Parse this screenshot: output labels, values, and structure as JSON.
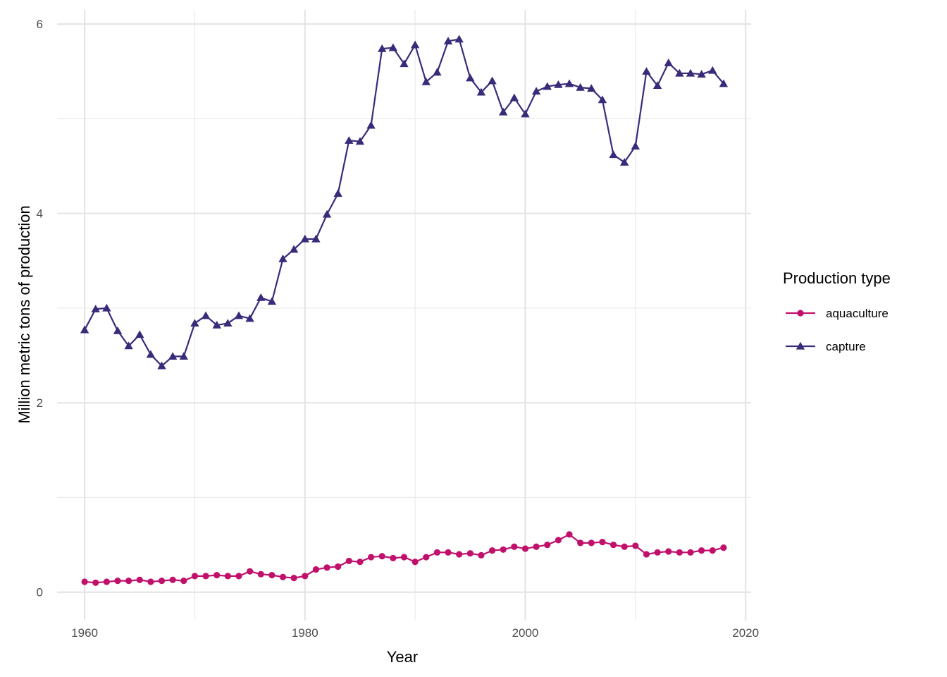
{
  "chart_data": {
    "type": "line",
    "xlabel": "Year",
    "ylabel": "Million metric tons of production",
    "xlim": [
      1957.5,
      2020.5
    ],
    "ylim": [
      -0.3,
      6.15
    ],
    "x_ticks": [
      1960,
      1980,
      2000,
      2020
    ],
    "y_ticks": [
      0,
      2,
      4,
      6
    ],
    "grid": true,
    "legend": {
      "title": "Production type",
      "position": "right"
    },
    "x": [
      1960,
      1961,
      1962,
      1963,
      1964,
      1965,
      1966,
      1967,
      1968,
      1969,
      1970,
      1971,
      1972,
      1973,
      1974,
      1975,
      1976,
      1977,
      1978,
      1979,
      1980,
      1981,
      1982,
      1983,
      1984,
      1985,
      1986,
      1987,
      1988,
      1989,
      1990,
      1991,
      1992,
      1993,
      1994,
      1995,
      1996,
      1997,
      1998,
      1999,
      2000,
      2001,
      2002,
      2003,
      2004,
      2005,
      2006,
      2007,
      2008,
      2009,
      2010,
      2011,
      2012,
      2013,
      2014,
      2015,
      2016,
      2017,
      2018
    ],
    "series": [
      {
        "name": "aquaculture",
        "color": "#c0106b",
        "marker": "circle",
        "values": [
          0.11,
          0.1,
          0.11,
          0.12,
          0.12,
          0.13,
          0.11,
          0.12,
          0.13,
          0.12,
          0.17,
          0.17,
          0.18,
          0.17,
          0.17,
          0.22,
          0.19,
          0.18,
          0.16,
          0.15,
          0.17,
          0.24,
          0.26,
          0.27,
          0.33,
          0.32,
          0.37,
          0.38,
          0.36,
          0.37,
          0.32,
          0.37,
          0.42,
          0.42,
          0.4,
          0.41,
          0.39,
          0.44,
          0.45,
          0.48,
          0.46,
          0.48,
          0.5,
          0.55,
          0.61,
          0.52,
          0.52,
          0.53,
          0.5,
          0.48,
          0.49,
          0.4,
          0.42,
          0.43,
          0.42,
          0.42,
          0.44,
          0.44,
          0.47
        ]
      },
      {
        "name": "capture",
        "color": "#3a2a7a",
        "marker": "triangle",
        "values": [
          2.77,
          2.99,
          3.0,
          2.76,
          2.6,
          2.72,
          2.51,
          2.39,
          2.49,
          2.49,
          2.84,
          2.92,
          2.82,
          2.84,
          2.92,
          2.89,
          3.11,
          3.07,
          3.52,
          3.62,
          3.73,
          3.73,
          3.99,
          4.21,
          4.77,
          4.76,
          4.93,
          5.74,
          5.75,
          5.58,
          5.78,
          5.39,
          5.49,
          5.82,
          5.84,
          5.43,
          5.28,
          5.4,
          5.07,
          5.22,
          5.05,
          5.29,
          5.34,
          5.36,
          5.37,
          5.33,
          5.32,
          5.2,
          4.62,
          4.54,
          4.71,
          5.5,
          5.35,
          5.59,
          5.48,
          5.48,
          5.47,
          5.51,
          5.37
        ]
      }
    ]
  }
}
